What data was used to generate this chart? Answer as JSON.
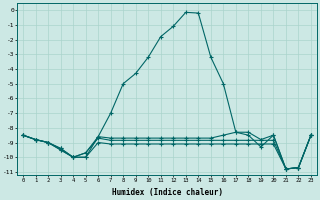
{
  "xlabel": "Humidex (Indice chaleur)",
  "bg_color": "#cce8e4",
  "grid_color": "#aad4cc",
  "line_color": "#006666",
  "x": [
    0,
    1,
    2,
    3,
    4,
    5,
    6,
    7,
    8,
    9,
    10,
    11,
    12,
    13,
    14,
    15,
    16,
    17,
    18,
    19,
    20,
    21,
    22,
    23
  ],
  "line1": [
    -8.5,
    -8.8,
    -9.0,
    -9.5,
    -10.0,
    -10.0,
    -8.6,
    -7.0,
    -5.0,
    -4.3,
    -3.2,
    -1.8,
    -1.1,
    -0.15,
    -0.2,
    -3.2,
    -5.0,
    -8.3,
    -8.5,
    -9.3,
    -8.5,
    -10.8,
    -10.7,
    -8.5
  ],
  "line2": [
    -8.5,
    -8.8,
    -9.0,
    -9.4,
    -10.0,
    -9.7,
    -8.6,
    -8.7,
    -8.7,
    -8.7,
    -8.7,
    -8.7,
    -8.7,
    -8.7,
    -8.7,
    -8.7,
    -8.5,
    -8.3,
    -8.3,
    -8.8,
    -8.5,
    -10.8,
    -10.7,
    -8.5
  ],
  "line3": [
    -8.5,
    -8.8,
    -9.0,
    -9.4,
    -10.0,
    -9.7,
    -8.7,
    -8.85,
    -8.85,
    -8.85,
    -8.85,
    -8.85,
    -8.85,
    -8.85,
    -8.85,
    -8.85,
    -8.85,
    -8.85,
    -8.85,
    -8.85,
    -8.85,
    -10.8,
    -10.7,
    -8.5
  ],
  "line4": [
    -8.5,
    -8.8,
    -9.0,
    -9.5,
    -10.0,
    -10.0,
    -9.0,
    -9.1,
    -9.1,
    -9.1,
    -9.1,
    -9.1,
    -9.1,
    -9.1,
    -9.1,
    -9.1,
    -9.1,
    -9.1,
    -9.1,
    -9.1,
    -9.1,
    -10.8,
    -10.7,
    -8.5
  ],
  "ylim": [
    -11.2,
    0.5
  ],
  "xlim": [
    -0.5,
    23.5
  ],
  "yticks": [
    0,
    -1,
    -2,
    -3,
    -4,
    -5,
    -6,
    -7,
    -8,
    -9,
    -10,
    -11
  ],
  "xticks": [
    0,
    1,
    2,
    3,
    4,
    5,
    6,
    7,
    8,
    9,
    10,
    11,
    12,
    13,
    14,
    15,
    16,
    17,
    18,
    19,
    20,
    21,
    22,
    23
  ]
}
